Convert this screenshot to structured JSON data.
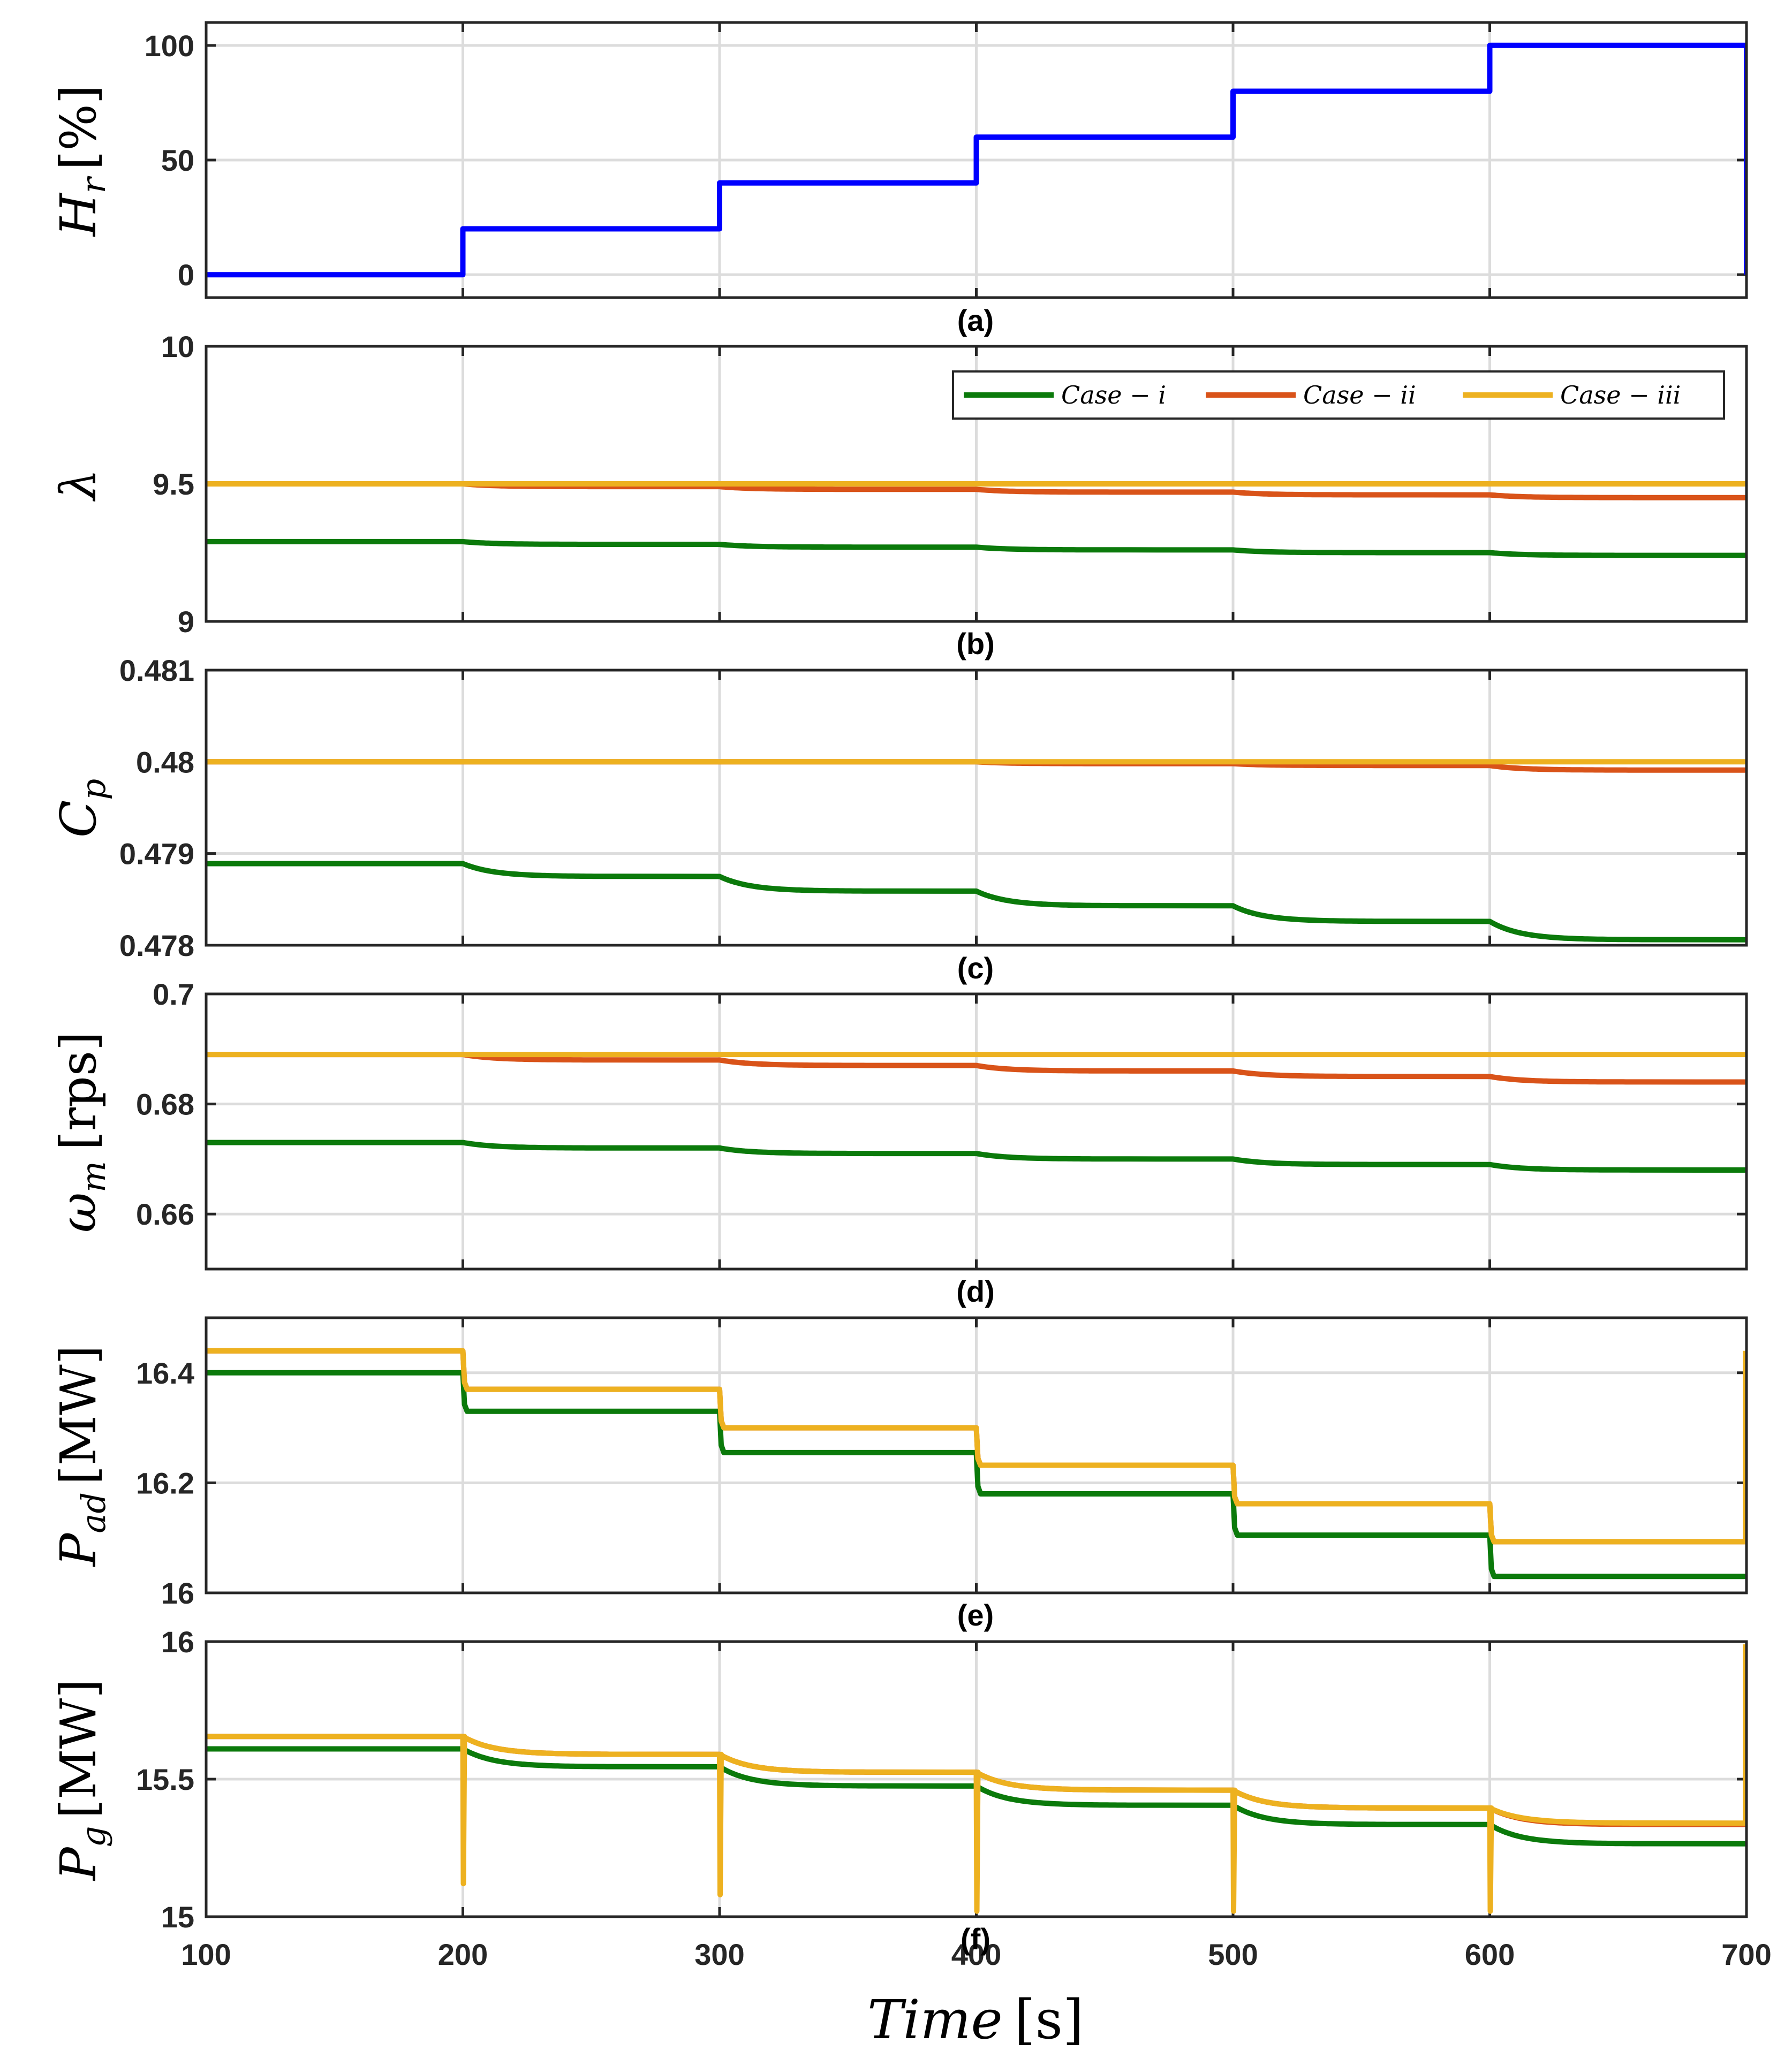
{
  "chart_data": [
    {
      "type": "line",
      "panel": "(a)",
      "ylabel": "H_r [%]",
      "ylim": [
        -10,
        110
      ],
      "yticks": [
        "0",
        "50",
        "100"
      ],
      "xlim": [
        100,
        700
      ],
      "series": [
        {
          "name": "H_r",
          "color": "#0000ff",
          "x": [
            100,
            200,
            200,
            300,
            300,
            400,
            400,
            500,
            500,
            600,
            600,
            700,
            700
          ],
          "y": [
            0,
            0,
            20,
            20,
            40,
            40,
            60,
            60,
            80,
            80,
            100,
            100,
            0
          ]
        }
      ]
    },
    {
      "type": "line",
      "panel": "(b)",
      "ylabel": "λ",
      "ylim": [
        9,
        10
      ],
      "yticks": [
        "9",
        "9.5",
        "10"
      ],
      "xlim": [
        100,
        700
      ],
      "legend": {
        "placement": "top-right",
        "entries": [
          "Case − i",
          "Case − ii",
          "Case − iii"
        ]
      },
      "series": [
        {
          "name": "Case − i",
          "color": "#0b7a0b",
          "x": [
            100,
            200,
            300,
            400,
            500,
            600,
            700
          ],
          "y": [
            9.29,
            9.28,
            9.27,
            9.26,
            9.25,
            9.24,
            9.23
          ]
        },
        {
          "name": "Case − ii",
          "color": "#d95319",
          "x": [
            100,
            200,
            300,
            400,
            500,
            600,
            700
          ],
          "y": [
            9.5,
            9.49,
            9.48,
            9.47,
            9.46,
            9.45,
            9.44
          ]
        },
        {
          "name": "Case − iii",
          "color": "#edb120",
          "x": [
            100,
            200,
            300,
            400,
            500,
            600,
            700
          ],
          "y": [
            9.5,
            9.5,
            9.5,
            9.5,
            9.5,
            9.5,
            9.5
          ]
        }
      ]
    },
    {
      "type": "line",
      "panel": "(c)",
      "ylabel": "C_p",
      "ylim": [
        0.478,
        0.481
      ],
      "yticks": [
        "0.478",
        "0.479",
        "0.48",
        "0.481"
      ],
      "xlim": [
        100,
        700
      ],
      "series": [
        {
          "name": "Case − i",
          "color": "#0b7a0b",
          "x": [
            100,
            200,
            300,
            400,
            500,
            600,
            700
          ],
          "y": [
            0.47889,
            0.47875,
            0.47859,
            0.47843,
            0.47826,
            0.47806,
            0.47806
          ]
        },
        {
          "name": "Case − ii",
          "color": "#d95319",
          "x": [
            100,
            200,
            300,
            400,
            500,
            600,
            700
          ],
          "y": [
            0.48,
            0.48,
            0.48,
            0.47998,
            0.47996,
            0.47991,
            0.47991
          ]
        },
        {
          "name": "Case − iii",
          "color": "#edb120",
          "x": [
            100,
            200,
            300,
            400,
            500,
            600,
            700
          ],
          "y": [
            0.48,
            0.48,
            0.48,
            0.48,
            0.48,
            0.48,
            0.48
          ]
        }
      ]
    },
    {
      "type": "line",
      "panel": "(d)",
      "ylabel": "ω_m [rps]",
      "ylim": [
        0.65,
        0.7
      ],
      "yticks": [
        "0.66",
        "0.68",
        "0.7"
      ],
      "xlim": [
        100,
        700
      ],
      "series": [
        {
          "name": "Case − i",
          "color": "#0b7a0b",
          "x": [
            100,
            200,
            300,
            400,
            500,
            600,
            700
          ],
          "y": [
            0.673,
            0.672,
            0.671,
            0.67,
            0.669,
            0.668,
            0.668
          ]
        },
        {
          "name": "Case − ii",
          "color": "#d95319",
          "x": [
            100,
            200,
            300,
            400,
            500,
            600,
            700
          ],
          "y": [
            0.689,
            0.688,
            0.687,
            0.686,
            0.685,
            0.684,
            0.684
          ]
        },
        {
          "name": "Case − iii",
          "color": "#edb120",
          "x": [
            100,
            200,
            300,
            400,
            500,
            600,
            700
          ],
          "y": [
            0.689,
            0.689,
            0.689,
            0.689,
            0.689,
            0.689,
            0.689
          ]
        }
      ]
    },
    {
      "type": "line",
      "panel": "(e)",
      "ylabel": "P_ad [MW]",
      "ylim": [
        16,
        16.5
      ],
      "yticks": [
        "16",
        "16.2",
        "16.4"
      ],
      "xlim": [
        100,
        700
      ],
      "series": [
        {
          "name": "Case − i",
          "color": "#0b7a0b",
          "x": [
            100,
            200,
            300,
            400,
            500,
            600,
            700
          ],
          "y": [
            16.4,
            16.33,
            16.255,
            16.18,
            16.105,
            16.03,
            16.03
          ]
        },
        {
          "name": "Case − ii",
          "color": "#d95319",
          "x": [
            100,
            200,
            300,
            400,
            500,
            600,
            700
          ],
          "y": [
            16.44,
            16.37,
            16.3,
            16.232,
            16.162,
            16.093,
            16.093
          ]
        },
        {
          "name": "Case − iii",
          "color": "#edb120",
          "x": [
            100,
            200,
            300,
            400,
            500,
            600,
            700
          ],
          "y": [
            16.44,
            16.37,
            16.3,
            16.232,
            16.162,
            16.093,
            16.44
          ]
        }
      ]
    },
    {
      "type": "line",
      "panel": "(f)",
      "ylabel": "P_g [MW]",
      "ylim": [
        15,
        16
      ],
      "yticks": [
        "15",
        "15.5",
        "16"
      ],
      "xlim": [
        100,
        700
      ],
      "xticks": [
        "100",
        "200",
        "300",
        "400",
        "500",
        "600",
        "700"
      ],
      "xlabel": "Time [s]",
      "series": [
        {
          "name": "Case − i",
          "color": "#0b7a0b",
          "x": [
            100,
            200,
            300,
            400,
            500,
            600,
            700
          ],
          "y": [
            15.61,
            15.545,
            15.475,
            15.405,
            15.335,
            15.265,
            15.265
          ]
        },
        {
          "name": "Case − ii",
          "color": "#d95319",
          "x": [
            100,
            200,
            300,
            400,
            500,
            600,
            700
          ],
          "y": [
            15.655,
            15.59,
            15.525,
            15.46,
            15.395,
            15.335,
            15.335
          ]
        },
        {
          "name": "Case − iii",
          "color": "#edb120",
          "x": [
            100,
            200,
            300,
            400,
            500,
            600,
            700
          ],
          "y": [
            15.655,
            15.59,
            15.525,
            15.46,
            15.395,
            15.34,
            15.99
          ],
          "dips": [
            15.12,
            15.08,
            15.02,
            15.02,
            15.02
          ]
        }
      ]
    }
  ],
  "labels": {
    "a": "(a)",
    "b": "(b)",
    "c": "(c)",
    "d": "(d)",
    "e": "(e)",
    "f": "(f)",
    "x_axis_main": "Time",
    "x_axis_unit": "[s]",
    "y_a_main": "H",
    "y_a_sub": "r",
    "y_a_unit": "[%]",
    "y_b": "λ",
    "y_c_main": "C",
    "y_c_sub": "p",
    "y_d_main": "ω",
    "y_d_sub": "m",
    "y_d_unit": "[rps]",
    "y_e_main": "P",
    "y_e_sub": "ad",
    "y_e_unit": "[MW]",
    "y_f_main": "P",
    "y_f_sub": "g",
    "y_f_unit": "[MW]",
    "legend_i": "Case − i",
    "legend_ii": "Case − ii",
    "legend_iii": "Case − iii"
  },
  "colors": {
    "blue": "#0000ff",
    "green": "#0b7a0b",
    "orange": "#d95319",
    "yellow": "#edb120"
  }
}
